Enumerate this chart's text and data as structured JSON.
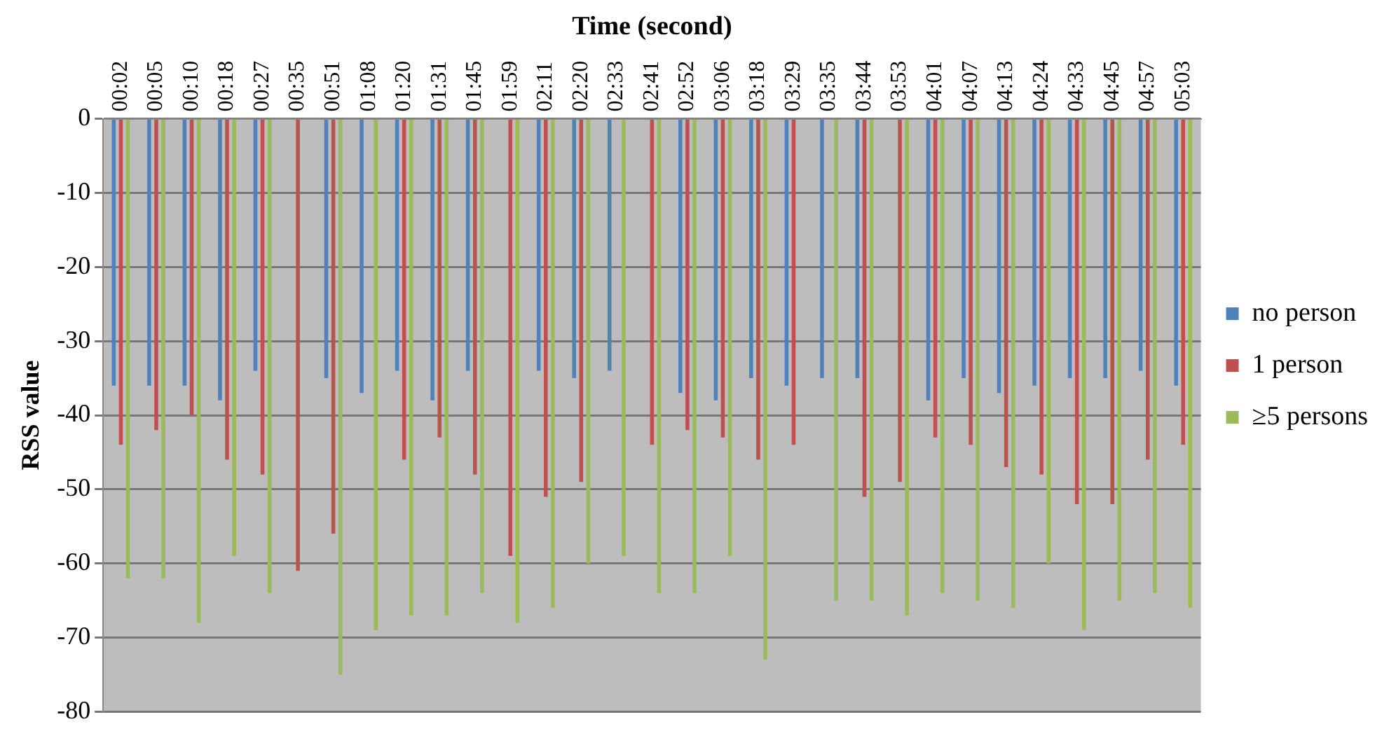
{
  "chart_data": {
    "type": "bar",
    "xlabel": "Time (second)",
    "ylabel": "RSS value",
    "categories": [
      "00:02",
      "00:05",
      "00:10",
      "00:18",
      "00:27",
      "00:35",
      "00:51",
      "01:08",
      "01:20",
      "01:31",
      "01:45",
      "01:59",
      "02:11",
      "02:20",
      "02:33",
      "02:41",
      "02:52",
      "03:06",
      "03:18",
      "03:29",
      "03:35",
      "03:44",
      "03:53",
      "04:01",
      "04:07",
      "04:13",
      "04:24",
      "04:33",
      "04:45",
      "04:57",
      "05:03"
    ],
    "series": [
      {
        "name": "no person",
        "color": "#4f81bd",
        "values": [
          -36,
          -36,
          -36,
          -38,
          -34,
          null,
          -35,
          -37,
          -34,
          -38,
          -34,
          null,
          -34,
          -35,
          -34,
          null,
          -37,
          -38,
          -35,
          -36,
          -35,
          -35,
          null,
          -38,
          -35,
          -37,
          -36,
          -35,
          -35,
          -34,
          -36
        ]
      },
      {
        "name": "1 person",
        "color": "#c0504d",
        "values": [
          -44,
          -42,
          -40,
          -46,
          -48,
          -61,
          -56,
          null,
          -46,
          -43,
          -48,
          -59,
          -51,
          -49,
          null,
          -44,
          -42,
          -43,
          -46,
          -44,
          null,
          -51,
          -49,
          -43,
          -44,
          -47,
          -48,
          -52,
          -52,
          -46,
          -44
        ]
      },
      {
        "name": "≥5 persons",
        "color": "#9bbb59",
        "values": [
          -62,
          -62,
          -68,
          -59,
          -64,
          null,
          -75,
          -69,
          -67,
          -67,
          -64,
          -68,
          -66,
          -60,
          -59,
          -64,
          -64,
          -59,
          -73,
          null,
          -65,
          -65,
          -67,
          -64,
          -65,
          -66,
          -60,
          -69,
          -65,
          -64,
          -66
        ]
      }
    ],
    "ylim": [
      -80,
      0
    ],
    "yticks": [
      0,
      -10,
      -20,
      -30,
      -40,
      -50,
      -60,
      -70,
      -80
    ],
    "grid": "y",
    "legend": "right"
  }
}
